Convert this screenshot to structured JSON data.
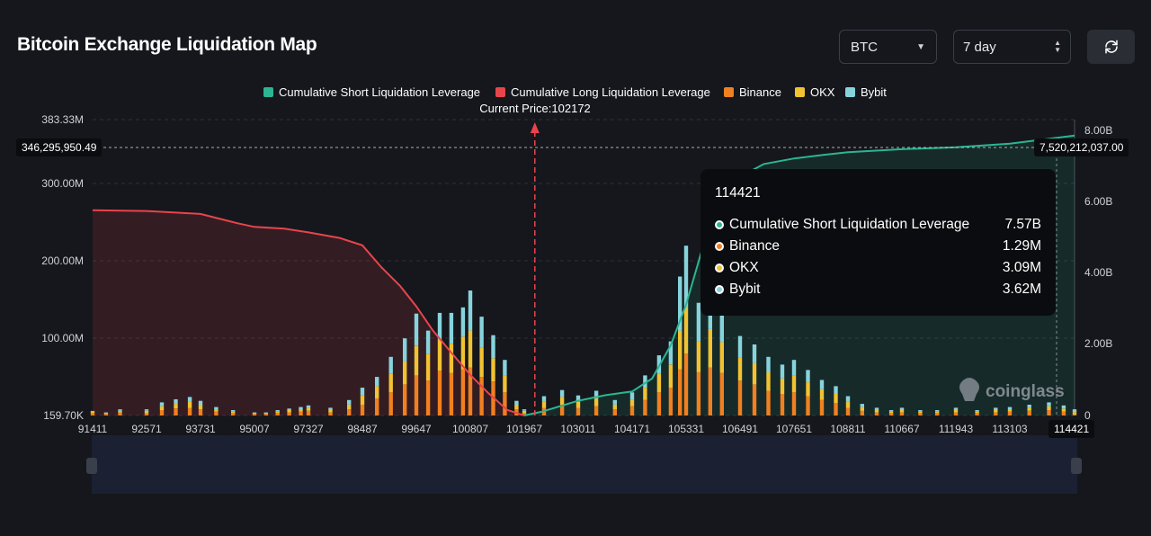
{
  "header": {
    "title": "Bitcoin Exchange Liquidation Map",
    "coin_select": "BTC",
    "range_select": "7 day",
    "refresh_icon": "refresh-icon"
  },
  "legend": [
    {
      "label": "Cumulative Short Liquidation Leverage",
      "color": "#2bb593"
    },
    {
      "label": "Cumulative Long Liquidation Leverage",
      "color": "#e8444c"
    },
    {
      "label": "Binance",
      "color": "#f08020"
    },
    {
      "label": "OKX",
      "color": "#f1c232"
    },
    {
      "label": "Bybit",
      "color": "#87d3dc"
    }
  ],
  "current_price_label": "Current Price:102172",
  "crosshair": {
    "left_value": "346,295,950.49",
    "right_value": "7,520,212,037.00",
    "x_value": "114421"
  },
  "tooltip": {
    "title": "114421",
    "rows": [
      {
        "label": "Cumulative Short Liquidation Leverage",
        "value": "7.57B",
        "color": "#2bb593"
      },
      {
        "label": "Binance",
        "value": "1.29M",
        "color": "#f08020"
      },
      {
        "label": "OKX",
        "value": "3.09M",
        "color": "#f1c232"
      },
      {
        "label": "Bybit",
        "value": "3.62M",
        "color": "#87d3dc"
      }
    ]
  },
  "watermark": "coinglass",
  "chart_data": {
    "type": "bar",
    "x_tick_labels": [
      "91411",
      "92571",
      "93731",
      "95007",
      "97327",
      "98487",
      "99647",
      "100807",
      "101967",
      "103011",
      "104171",
      "105331",
      "106491",
      "107651",
      "108811",
      "110667",
      "111943",
      "113103"
    ],
    "x_range": [
      91411,
      114421
    ],
    "current_price": 102172,
    "left_axis": {
      "ticks": [
        "383.33M",
        "300.00M",
        "200.00M",
        "100.00M",
        "159.70K"
      ],
      "range": [
        0,
        383330000
      ]
    },
    "right_axis": {
      "ticks": [
        "8.00B",
        "6.00B",
        "4.00B",
        "2.00B",
        "0"
      ],
      "range": [
        0,
        8000000000
      ]
    },
    "long_cumulative": {
      "name": "Cumulative Long Liquidation Leverage",
      "x": [
        91411,
        92571,
        93731,
        94600,
        95007,
        96300,
        97327,
        98000,
        98487,
        98900,
        99300,
        99647,
        100000,
        100400,
        100807,
        101200,
        101600,
        101967
      ],
      "y": [
        5.55,
        5.53,
        5.45,
        5.2,
        5.1,
        5.05,
        4.95,
        4.8,
        4.6,
        4.0,
        3.5,
        2.95,
        2.3,
        1.7,
        1.1,
        0.6,
        0.15,
        0.0
      ]
    },
    "short_cumulative": {
      "name": "Cumulative Short Liquidation Leverage",
      "x": [
        101967,
        102300,
        103011,
        103600,
        104171,
        104600,
        105000,
        105331,
        105700,
        106100,
        106491,
        107000,
        107651,
        108300,
        108811,
        110667,
        111943,
        113103,
        114421
      ],
      "y": [
        0.0,
        0.1,
        0.4,
        0.55,
        0.65,
        1.0,
        1.9,
        3.0,
        4.6,
        5.8,
        6.45,
        6.8,
        6.95,
        7.05,
        7.12,
        7.2,
        7.25,
        7.35,
        7.57
      ]
    },
    "bars": [
      {
        "x": 91411,
        "binance": 3,
        "okx": 2,
        "bybit": 1
      },
      {
        "x": 91700,
        "binance": 2,
        "okx": 1,
        "bybit": 1
      },
      {
        "x": 92000,
        "binance": 4,
        "okx": 2,
        "bybit": 2
      },
      {
        "x": 92571,
        "binance": 3,
        "okx": 3,
        "bybit": 2
      },
      {
        "x": 92900,
        "binance": 7,
        "okx": 5,
        "bybit": 5
      },
      {
        "x": 93200,
        "binance": 9,
        "okx": 6,
        "bybit": 6
      },
      {
        "x": 93500,
        "binance": 10,
        "okx": 8,
        "bybit": 6
      },
      {
        "x": 93731,
        "binance": 8,
        "okx": 6,
        "bybit": 5
      },
      {
        "x": 94100,
        "binance": 5,
        "okx": 3,
        "bybit": 3
      },
      {
        "x": 94500,
        "binance": 3,
        "okx": 2,
        "bybit": 2
      },
      {
        "x": 95007,
        "binance": 2,
        "okx": 1,
        "bybit": 1
      },
      {
        "x": 95500,
        "binance": 2,
        "okx": 1,
        "bybit": 1
      },
      {
        "x": 96000,
        "binance": 3,
        "okx": 2,
        "bybit": 2
      },
      {
        "x": 96500,
        "binance": 4,
        "okx": 3,
        "bybit": 2
      },
      {
        "x": 97000,
        "binance": 5,
        "okx": 3,
        "bybit": 3
      },
      {
        "x": 97327,
        "binance": 6,
        "okx": 4,
        "bybit": 3
      },
      {
        "x": 97800,
        "binance": 4,
        "okx": 3,
        "bybit": 3
      },
      {
        "x": 98200,
        "binance": 8,
        "okx": 6,
        "bybit": 6
      },
      {
        "x": 98487,
        "binance": 14,
        "okx": 12,
        "bybit": 10
      },
      {
        "x": 98800,
        "binance": 22,
        "okx": 16,
        "bybit": 12
      },
      {
        "x": 99100,
        "binance": 30,
        "okx": 24,
        "bybit": 22
      },
      {
        "x": 99400,
        "binance": 40,
        "okx": 30,
        "bybit": 30
      },
      {
        "x": 99647,
        "binance": 52,
        "okx": 38,
        "bybit": 42
      },
      {
        "x": 99900,
        "binance": 45,
        "okx": 35,
        "bybit": 30
      },
      {
        "x": 100150,
        "binance": 58,
        "okx": 40,
        "bybit": 35
      },
      {
        "x": 100400,
        "binance": 55,
        "okx": 38,
        "bybit": 40
      },
      {
        "x": 100650,
        "binance": 60,
        "okx": 42,
        "bybit": 38
      },
      {
        "x": 100807,
        "binance": 62,
        "okx": 48,
        "bybit": 52
      },
      {
        "x": 101050,
        "binance": 50,
        "okx": 38,
        "bybit": 40
      },
      {
        "x": 101300,
        "binance": 44,
        "okx": 30,
        "bybit": 30
      },
      {
        "x": 101550,
        "binance": 30,
        "okx": 22,
        "bybit": 20
      },
      {
        "x": 101800,
        "binance": 8,
        "okx": 6,
        "bybit": 5
      },
      {
        "x": 101967,
        "binance": 3,
        "okx": 3,
        "bybit": 2
      },
      {
        "x": 102350,
        "binance": 10,
        "okx": 8,
        "bybit": 7
      },
      {
        "x": 102700,
        "binance": 14,
        "okx": 10,
        "bybit": 9
      },
      {
        "x": 103011,
        "binance": 10,
        "okx": 8,
        "bybit": 8
      },
      {
        "x": 103400,
        "binance": 12,
        "okx": 10,
        "bybit": 10
      },
      {
        "x": 103800,
        "binance": 8,
        "okx": 6,
        "bybit": 6
      },
      {
        "x": 104171,
        "binance": 12,
        "okx": 8,
        "bybit": 10
      },
      {
        "x": 104450,
        "binance": 20,
        "okx": 16,
        "bybit": 16
      },
      {
        "x": 104750,
        "binance": 30,
        "okx": 24,
        "bybit": 24
      },
      {
        "x": 105000,
        "binance": 36,
        "okx": 30,
        "bybit": 30
      },
      {
        "x": 105200,
        "binance": 60,
        "okx": 50,
        "bybit": 70
      },
      {
        "x": 105331,
        "binance": 80,
        "okx": 60,
        "bybit": 80
      },
      {
        "x": 105600,
        "binance": 56,
        "okx": 40,
        "bybit": 50
      },
      {
        "x": 105850,
        "binance": 62,
        "okx": 50,
        "bybit": 60
      },
      {
        "x": 106100,
        "binance": 55,
        "okx": 40,
        "bybit": 40
      },
      {
        "x": 106491,
        "binance": 45,
        "okx": 30,
        "bybit": 28
      },
      {
        "x": 106800,
        "binance": 40,
        "okx": 28,
        "bybit": 24
      },
      {
        "x": 107100,
        "binance": 32,
        "okx": 24,
        "bybit": 20
      },
      {
        "x": 107400,
        "binance": 28,
        "okx": 20,
        "bybit": 18
      },
      {
        "x": 107651,
        "binance": 30,
        "okx": 22,
        "bybit": 20
      },
      {
        "x": 107950,
        "binance": 25,
        "okx": 18,
        "bybit": 16
      },
      {
        "x": 108250,
        "binance": 20,
        "okx": 14,
        "bybit": 12
      },
      {
        "x": 108550,
        "binance": 16,
        "okx": 12,
        "bybit": 10
      },
      {
        "x": 108811,
        "binance": 10,
        "okx": 8,
        "bybit": 7
      },
      {
        "x": 109300,
        "binance": 6,
        "okx": 5,
        "bybit": 4
      },
      {
        "x": 109800,
        "binance": 4,
        "okx": 3,
        "bybit": 3
      },
      {
        "x": 110300,
        "binance": 3,
        "okx": 2,
        "bybit": 2
      },
      {
        "x": 110667,
        "binance": 4,
        "okx": 3,
        "bybit": 3
      },
      {
        "x": 111100,
        "binance": 3,
        "okx": 2,
        "bybit": 2
      },
      {
        "x": 111500,
        "binance": 3,
        "okx": 2,
        "bybit": 2
      },
      {
        "x": 111943,
        "binance": 4,
        "okx": 3,
        "bybit": 3
      },
      {
        "x": 112400,
        "binance": 3,
        "okx": 2,
        "bybit": 2
      },
      {
        "x": 112800,
        "binance": 4,
        "okx": 3,
        "bybit": 3
      },
      {
        "x": 113103,
        "binance": 5,
        "okx": 3,
        "bybit": 3
      },
      {
        "x": 113500,
        "binance": 6,
        "okx": 4,
        "bybit": 4
      },
      {
        "x": 113900,
        "binance": 7,
        "okx": 5,
        "bybit": 5
      },
      {
        "x": 114200,
        "binance": 5,
        "okx": 4,
        "bybit": 4
      },
      {
        "x": 114421,
        "binance": 1.29,
        "okx": 3.09,
        "bybit": 3.62
      }
    ],
    "bar_units": "M",
    "line_units": "B",
    "grid": true,
    "legend_position": "top-center"
  }
}
